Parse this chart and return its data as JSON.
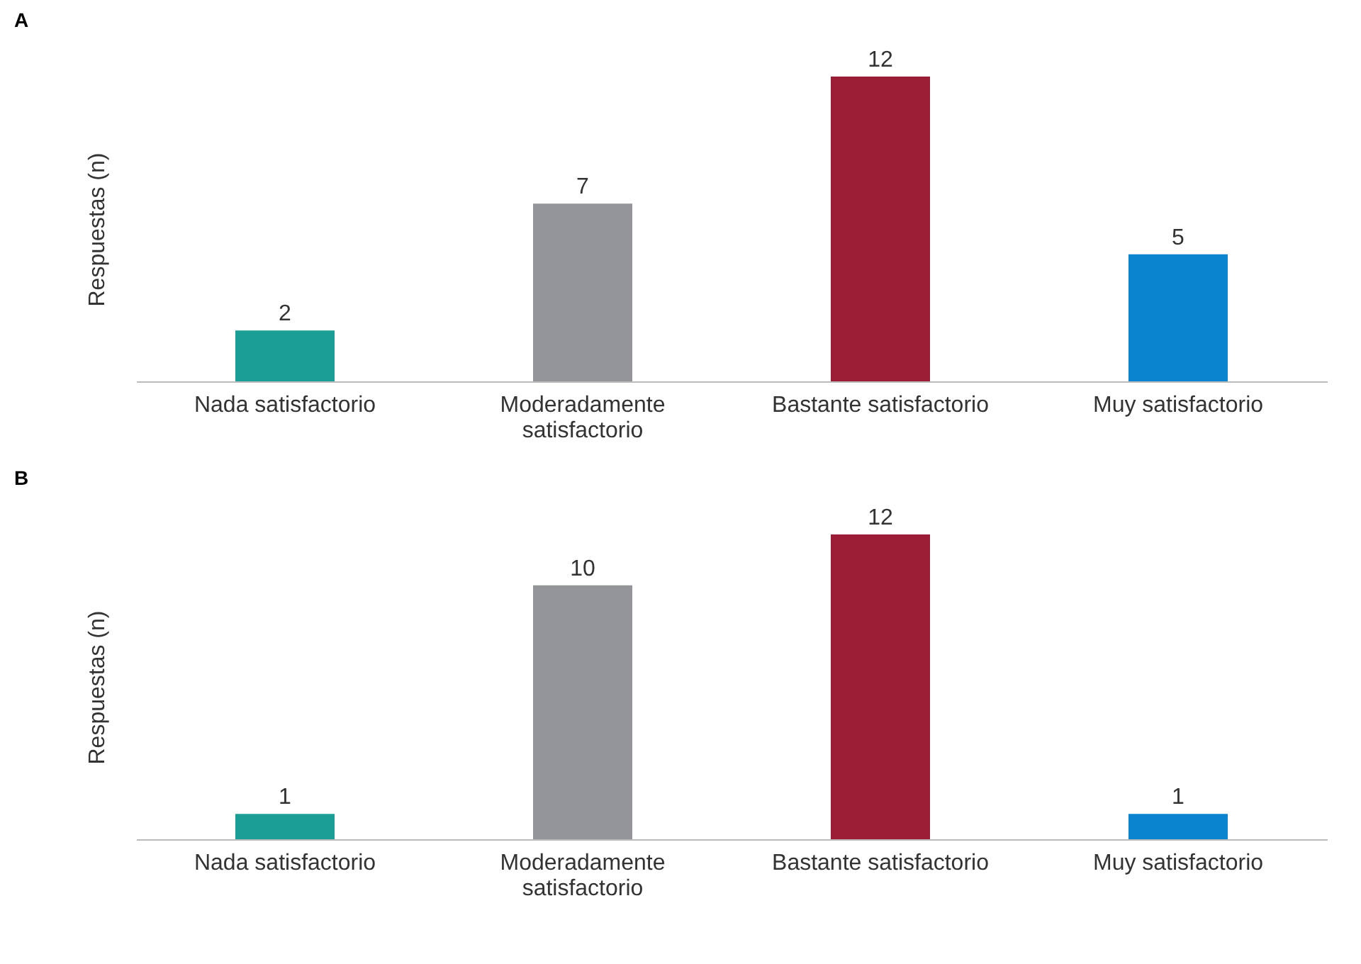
{
  "chart_data": [
    {
      "type": "bar",
      "title": "A",
      "ylabel": "Respuestas (n)",
      "categories": [
        "Nada satisfactorio",
        "Moderadamente satisfactorio",
        "Bastante satisfactorio",
        "Muy satisfactorio"
      ],
      "values": [
        2,
        7,
        12,
        5
      ],
      "colors": [
        "#1a9e96",
        "#939598",
        "#9b1c35",
        "#0a84cf"
      ],
      "data_labels": true,
      "tick_labels": "x",
      "grid": false
    },
    {
      "type": "bar",
      "title": "B",
      "ylabel": "Respuestas (n)",
      "categories": [
        "Nada satisfactorio",
        "Moderadamente satisfactorio",
        "Bastante satisfactorio",
        "Muy satisfactorio"
      ],
      "values": [
        1,
        10,
        12,
        1
      ],
      "colors": [
        "#1a9e96",
        "#939598",
        "#9b1c35",
        "#0a84cf"
      ],
      "data_labels": true,
      "tick_labels": "x",
      "grid": false
    }
  ]
}
